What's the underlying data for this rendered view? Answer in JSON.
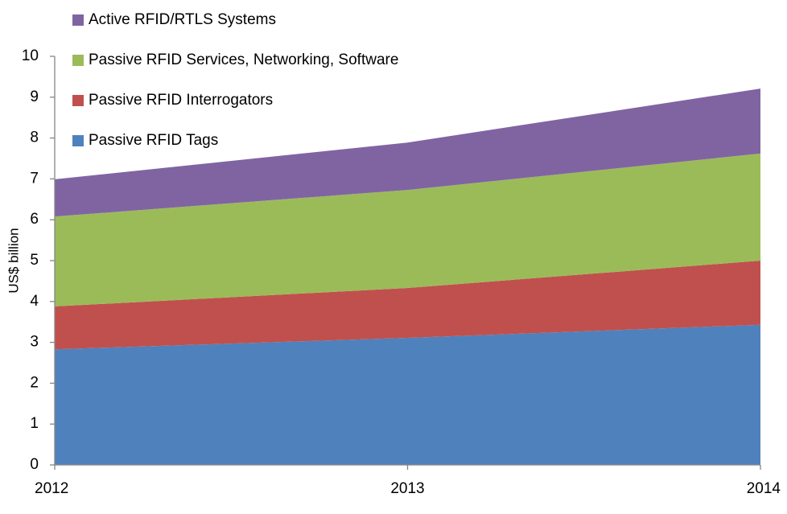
{
  "chart_data": {
    "type": "stacked_area",
    "y_label": "US$ billion",
    "categories": [
      "2012",
      "2013",
      "2014"
    ],
    "series": [
      {
        "name": "Passive RFID Tags",
        "color": "#4f81bd",
        "values": [
          2.83,
          3.11,
          3.43
        ]
      },
      {
        "name": "Passive RFID Interrogators",
        "color": "#c0504d",
        "values": [
          1.05,
          1.22,
          1.57
        ]
      },
      {
        "name": "Passive RFID Services, Networking, Software",
        "color": "#9bbb59",
        "values": [
          2.2,
          2.4,
          2.62
        ]
      },
      {
        "name": "Active RFID/RTLS Systems",
        "color": "#8064a2",
        "values": [
          0.91,
          1.16,
          1.59
        ]
      }
    ],
    "ylim": [
      0,
      10
    ],
    "yticks": [
      0,
      1,
      2,
      3,
      4,
      5,
      6,
      7,
      8,
      9,
      10
    ],
    "grid": false
  }
}
